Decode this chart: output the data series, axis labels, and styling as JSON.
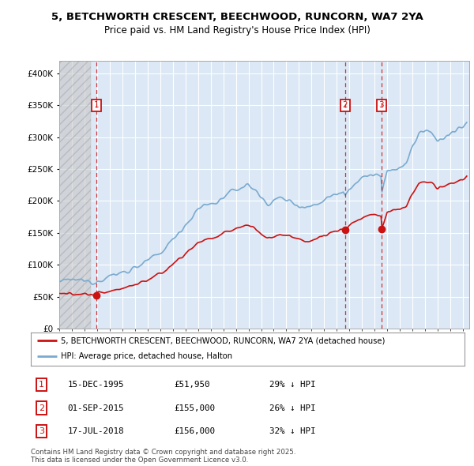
{
  "title_line1": "5, BETCHWORTH CRESCENT, BEECHWOOD, RUNCORN, WA7 2YA",
  "title_line2": "Price paid vs. HM Land Registry's House Price Index (HPI)",
  "xlim_start": 1993.0,
  "xlim_end": 2025.5,
  "ylim": [
    0,
    420000
  ],
  "yticks": [
    0,
    50000,
    100000,
    150000,
    200000,
    250000,
    300000,
    350000,
    400000
  ],
  "ytick_labels": [
    "£0",
    "£50K",
    "£100K",
    "£150K",
    "£200K",
    "£250K",
    "£300K",
    "£350K",
    "£400K"
  ],
  "transactions": [
    {
      "date_year": 1995.96,
      "price": 51950,
      "label": "1"
    },
    {
      "date_year": 2015.67,
      "price": 155000,
      "label": "2"
    },
    {
      "date_year": 2018.54,
      "price": 156000,
      "label": "3"
    }
  ],
  "transaction_table": [
    {
      "label": "1",
      "date": "15-DEC-1995",
      "price": "£51,950",
      "hpi": "29% ↓ HPI"
    },
    {
      "label": "2",
      "date": "01-SEP-2015",
      "price": "£155,000",
      "hpi": "26% ↓ HPI"
    },
    {
      "label": "3",
      "date": "17-JUL-2018",
      "price": "£156,000",
      "hpi": "32% ↓ HPI"
    }
  ],
  "legend_line1": "5, BETCHWORTH CRESCENT, BEECHWOOD, RUNCORN, WA7 2YA (detached house)",
  "legend_line2": "HPI: Average price, detached house, Halton",
  "footer": "Contains HM Land Registry data © Crown copyright and database right 2025.\nThis data is licensed under the Open Government Licence v3.0.",
  "hpi_color": "#7aaacf",
  "price_color": "#cc1111",
  "dashed_line_color": "#cc1111",
  "background_color": "#ffffff",
  "plot_bg_color": "#dce8f5",
  "grid_color": "#ffffff",
  "hpi_years": [
    1993.0,
    1993.5,
    1994.0,
    1994.5,
    1995.0,
    1995.5,
    1995.96,
    1996.0,
    1996.5,
    1997.0,
    1997.5,
    1998.0,
    1998.5,
    1999.0,
    1999.5,
    2000.0,
    2000.5,
    2001.0,
    2001.5,
    2002.0,
    2002.5,
    2003.0,
    2003.5,
    2004.0,
    2004.5,
    2005.0,
    2005.5,
    2006.0,
    2006.5,
    2007.0,
    2007.5,
    2008.0,
    2008.5,
    2009.0,
    2009.5,
    2010.0,
    2010.5,
    2011.0,
    2011.5,
    2012.0,
    2012.5,
    2013.0,
    2013.5,
    2014.0,
    2014.5,
    2015.0,
    2015.5,
    2015.67,
    2016.0,
    2016.5,
    2017.0,
    2017.5,
    2018.0,
    2018.5,
    2018.54,
    2019.0,
    2019.5,
    2020.0,
    2020.5,
    2021.0,
    2021.5,
    2022.0,
    2022.5,
    2023.0,
    2023.5,
    2024.0,
    2024.5,
    2025.0,
    2025.3
  ],
  "hpi_vals": [
    74000,
    74500,
    76000,
    76500,
    74000,
    74500,
    72000,
    76000,
    78000,
    82000,
    85000,
    88000,
    91000,
    96000,
    100000,
    106000,
    112000,
    118000,
    128000,
    140000,
    152000,
    162000,
    174000,
    186000,
    194000,
    195000,
    198000,
    205000,
    212000,
    218000,
    222000,
    225000,
    218000,
    205000,
    196000,
    200000,
    205000,
    202000,
    198000,
    193000,
    190000,
    192000,
    196000,
    202000,
    208000,
    212000,
    216000,
    210000,
    220000,
    228000,
    235000,
    240000,
    242000,
    238000,
    210000,
    245000,
    250000,
    252000,
    258000,
    285000,
    305000,
    310000,
    308000,
    295000,
    298000,
    305000,
    310000,
    315000,
    322000
  ],
  "hpi_at_t1": 72000,
  "hpi_at_t2": 210000,
  "hpi_at_t3": 210000
}
